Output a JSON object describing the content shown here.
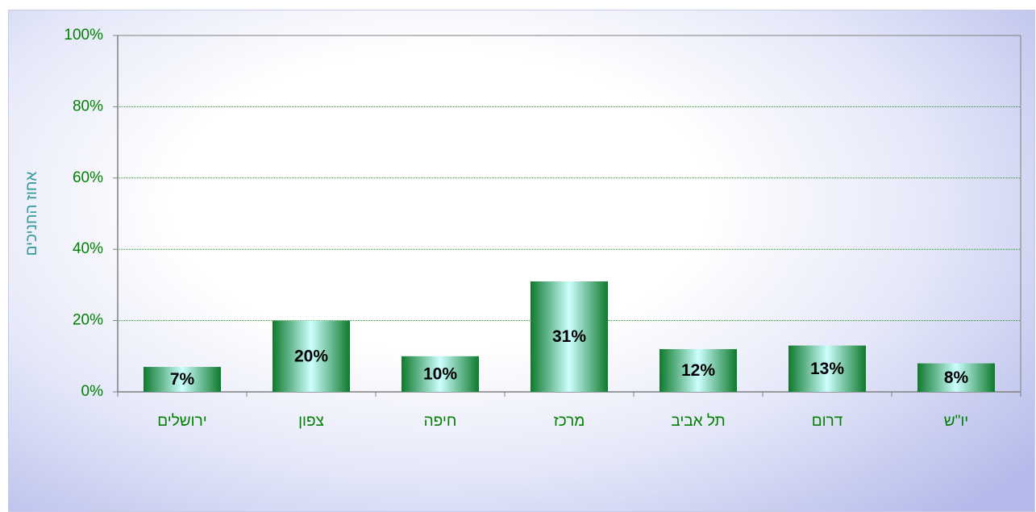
{
  "chart_data": {
    "type": "bar",
    "y_label": "אחוז החניכים",
    "categories": [
      "ירושלים",
      "צפון",
      "חיפה",
      "מרכז",
      "תל אביב",
      "דרום",
      "יו\"ש"
    ],
    "values": [
      7,
      20,
      10,
      31,
      12,
      13,
      8
    ],
    "value_labels": [
      "7%",
      "20%",
      "10%",
      "31%",
      "12%",
      "13%",
      "8%"
    ],
    "color": "#0e7a2c",
    "ylim": [
      0,
      100
    ],
    "yticks": [
      {
        "value": 0,
        "label": "0%"
      },
      {
        "value": 20,
        "label": "20%"
      },
      {
        "value": 40,
        "label": "40%"
      },
      {
        "value": 60,
        "label": "60%"
      },
      {
        "value": 80,
        "label": "80%"
      },
      {
        "value": 100,
        "label": "100%"
      }
    ],
    "grid": true
  }
}
